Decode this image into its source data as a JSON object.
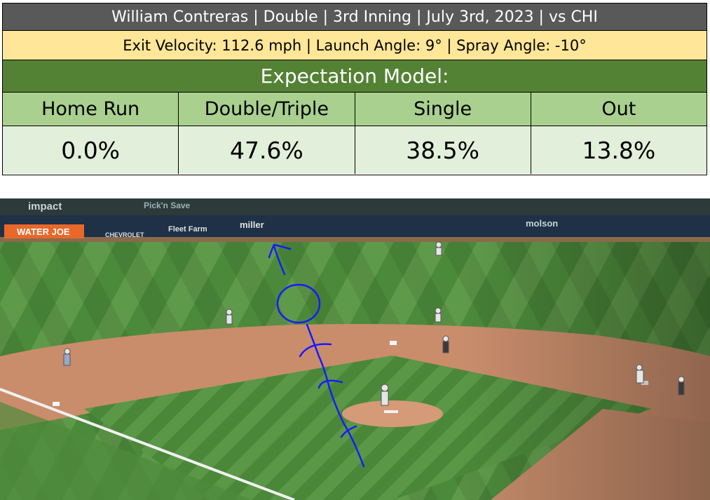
{
  "play": {
    "header": "William Contreras | Double | 3rd Inning | July 3rd, 2023 | vs CHI",
    "metrics": "Exit Velocity: 112.6 mph | Launch Angle: 9° | Spray Angle: -10°"
  },
  "model": {
    "title": "Expectation Model:",
    "outcomes": [
      {
        "label": "Home Run",
        "probability": "0.0%"
      },
      {
        "label": "Double/Triple",
        "probability": "47.6%"
      },
      {
        "label": "Single",
        "probability": "38.5%"
      },
      {
        "label": "Out",
        "probability": "13.8%"
      }
    ]
  },
  "photo": {
    "signage": [
      "impact",
      "Pick'n Save",
      "WATER JOE",
      "CHEVROLET",
      "Fleet Farm",
      "miller",
      "molson"
    ],
    "annotation_color": "#1a1aff"
  },
  "colors": {
    "header_bg": "#595959",
    "metrics_bg": "#ffe699",
    "model_bg": "#548235",
    "outcome_header_bg": "#a9d08e",
    "outcome_value_bg": "#e2efda"
  }
}
